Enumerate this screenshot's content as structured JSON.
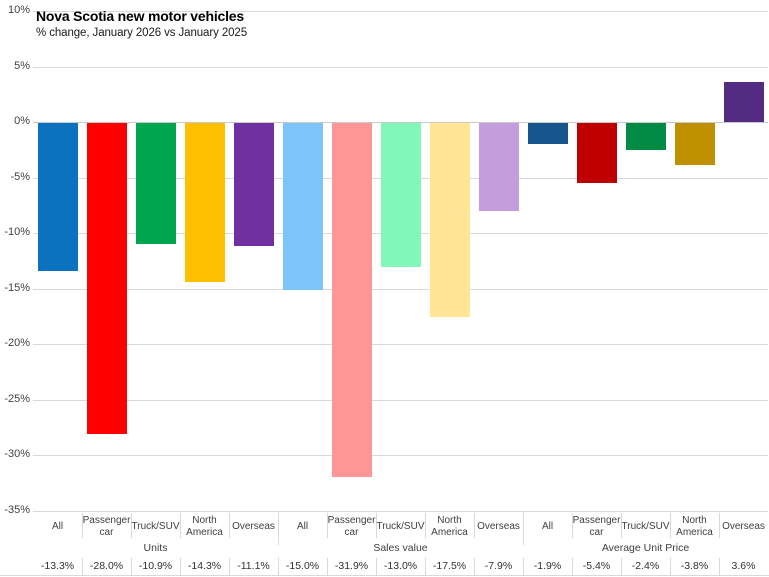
{
  "title": "Nova Scotia new motor vehicles",
  "subtitle": "% change, January 2026 vs January 2025",
  "chart_data": {
    "type": "bar",
    "title": "Nova Scotia new motor vehicles",
    "subtitle": "% change, January 2026 vs January 2025",
    "ylim": [
      -35,
      10
    ],
    "y_step": 5,
    "y_tick_labels": [
      "10%",
      "5%",
      "0%",
      "-5%",
      "-10%",
      "-15%",
      "-20%",
      "-25%",
      "-30%",
      "-35%"
    ],
    "grid": true,
    "legend": "none",
    "categories_per_group": [
      "All",
      "Passenger car",
      "Truck/SUV",
      "North America",
      "Overseas"
    ],
    "groups": [
      {
        "label": "Units",
        "categories": [
          "All",
          "Passenger car",
          "Truck/SUV",
          "North America",
          "Overseas"
        ],
        "values": [
          -13.3,
          -28.0,
          -10.9,
          -14.3,
          -11.1
        ],
        "value_labels": [
          "-13.3%",
          "-28.0%",
          "-10.9%",
          "-14.3%",
          "-11.1%"
        ],
        "bar_colors": [
          "#0b72c0",
          "#fe0000",
          "#00a550",
          "#ffc001",
          "#7030a0"
        ]
      },
      {
        "label": "Sales value",
        "categories": [
          "All",
          "Passenger car",
          "Truck/SUV",
          "North America",
          "Overseas"
        ],
        "values": [
          -15.0,
          -31.9,
          -13.0,
          -17.5,
          -7.9
        ],
        "value_labels": [
          "-15.0%",
          "-31.9%",
          "-13.0%",
          "-17.5%",
          "-7.9%"
        ],
        "bar_colors": [
          "#7dc4f8",
          "#ff9696",
          "#82f7ba",
          "#ffe595",
          "#c49ddc"
        ]
      },
      {
        "label": "Average Unit Price",
        "categories": [
          "All",
          "Passenger car",
          "Truck/SUV",
          "North America",
          "Overseas"
        ],
        "values": [
          -1.9,
          -5.4,
          -2.4,
          -3.8,
          3.6
        ],
        "value_labels": [
          "-1.9%",
          "-5.4%",
          "-2.4%",
          "-3.8%",
          "3.6%"
        ],
        "bar_colors": [
          "#16568c",
          "#c00000",
          "#018b45",
          "#bf9000",
          "#532b80"
        ]
      }
    ],
    "colors": {
      "gridline": "#d9d9d9",
      "axis_text": "#3f3f3f",
      "background": "#ffffff"
    }
  }
}
